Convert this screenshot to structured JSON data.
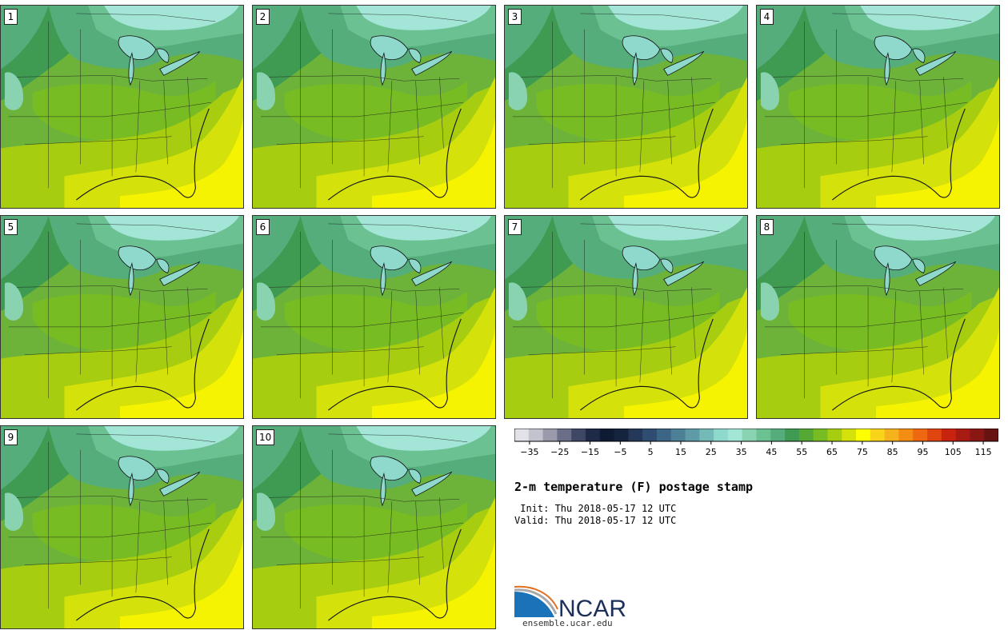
{
  "panels": [
    {
      "label": "1"
    },
    {
      "label": "2"
    },
    {
      "label": "3"
    },
    {
      "label": "4"
    },
    {
      "label": "5"
    },
    {
      "label": "6"
    },
    {
      "label": "7"
    },
    {
      "label": "8"
    },
    {
      "label": "9"
    },
    {
      "label": "10"
    }
  ],
  "colorbar": {
    "colors": [
      "#e2e2e8",
      "#c3c3cf",
      "#9a9aad",
      "#6a6f87",
      "#3f4766",
      "#1e2a48",
      "#0f1a34",
      "#16233f",
      "#24385a",
      "#2f4d70",
      "#3d6586",
      "#4d7f97",
      "#5e9ba6",
      "#72b9b7",
      "#8fd8cc",
      "#a3e6d8",
      "#8ad3b0",
      "#6cc193",
      "#55ad7b",
      "#3f9b52",
      "#55a834",
      "#78bc24",
      "#a6cd10",
      "#d4e10a",
      "#ffff00",
      "#f8d51a",
      "#f6b21c",
      "#f38d14",
      "#ee6811",
      "#e04410",
      "#c8230f",
      "#a81b12",
      "#8a1714",
      "#671312"
    ],
    "ticks": [
      "−35",
      "−25",
      "−15",
      "−5",
      "5",
      "15",
      "25",
      "35",
      "45",
      "55",
      "65",
      "75",
      "85",
      "95",
      "105",
      "115"
    ],
    "min": -40,
    "max": 120
  },
  "title": "2-m temperature (F) postage stamp",
  "init": " Init: Thu 2018-05-17 12 UTC",
  "valid": "Valid: Thu 2018-05-17 12 UTC",
  "logo": {
    "name": "NCAR",
    "url": "ensemble.ucar.edu"
  }
}
